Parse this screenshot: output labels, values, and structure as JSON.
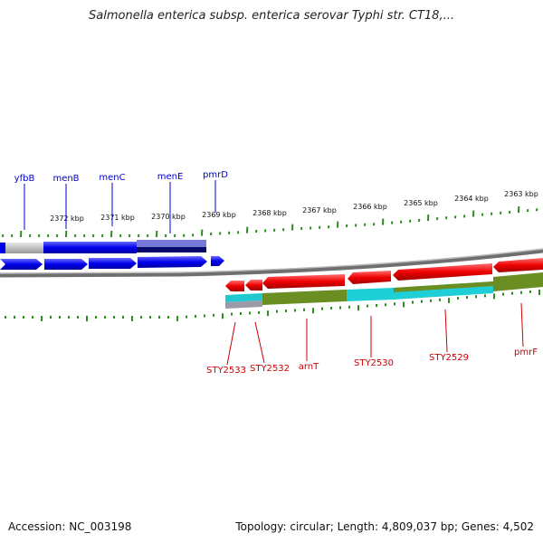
{
  "title": "Salmonella enterica subsp. enterica serovar Typhi str. CT18,...",
  "footer": {
    "accession": "Accession: NC_003198",
    "topology": "Topology: circular; Length: 4,809,037 bp; Genes: 4,502"
  },
  "scale_labels": [
    "2372 kbp",
    "2371 kbp",
    "2370 kbp",
    "2369 kbp",
    "2368 kbp",
    "2367 kbp",
    "2366 kbp",
    "2365 kbp",
    "2364 kbp",
    "2363 kbp"
  ],
  "genes_top": [
    "yfbB",
    "menB",
    "menC",
    "menE",
    "pmrD"
  ],
  "genes_bottom": [
    "STY2533",
    "STY2532",
    "arnT",
    "STY2530",
    "STY2529",
    "pmrF"
  ],
  "colors": {
    "forward_strand": "#0000ee",
    "reverse_strand": "#ee0000",
    "cds_cyan": "#22cccc",
    "cds_olive": "#6b8e23",
    "tick": "#2e8b22",
    "backbone": "#888888"
  }
}
